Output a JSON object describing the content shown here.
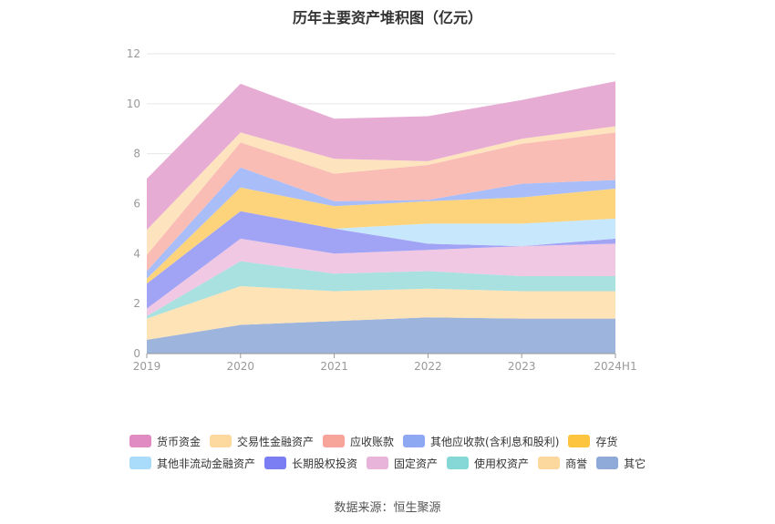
{
  "chart_data": {
    "type": "area",
    "stacked": true,
    "title": "历年主要资产堆积图（亿元）",
    "categories": [
      "2019",
      "2020",
      "2021",
      "2022",
      "2023",
      "2024H1"
    ],
    "ylim": [
      0,
      12
    ],
    "yticks": [
      0,
      2,
      4,
      6,
      8,
      10,
      12
    ],
    "grid": true,
    "legend_position": "bottom",
    "series": [
      {
        "name": "其它",
        "color": "#9db4dd",
        "values": [
          0.55,
          1.15,
          1.3,
          1.45,
          1.4,
          1.4
        ]
      },
      {
        "name": "商誉",
        "color": "#fde3b5",
        "values": [
          0.85,
          1.55,
          1.2,
          1.15,
          1.1,
          1.1
        ]
      },
      {
        "name": "使用权资产",
        "color": "#a8e1e0",
        "values": [
          0.1,
          1.0,
          0.7,
          0.7,
          0.6,
          0.6
        ]
      },
      {
        "name": "固定资产",
        "color": "#f0c8e4",
        "values": [
          0.3,
          0.9,
          0.8,
          0.85,
          1.2,
          1.3
        ]
      },
      {
        "name": "长期股权投资",
        "color": "#a1a3f5",
        "values": [
          1.0,
          1.1,
          1.0,
          0.25,
          0.0,
          0.2
        ]
      },
      {
        "name": "其他非流动金融资产",
        "color": "#c7e7fc",
        "values": [
          0.0,
          0.0,
          0.0,
          0.8,
          0.9,
          0.8
        ]
      },
      {
        "name": "存货",
        "color": "#fdd47c",
        "values": [
          0.2,
          0.95,
          0.9,
          0.9,
          1.05,
          1.2
        ]
      },
      {
        "name": "其他应收款(含利息和股利)",
        "color": "#a9bdf8",
        "values": [
          0.3,
          0.8,
          0.2,
          0.05,
          0.55,
          0.35
        ]
      },
      {
        "name": "应收账款",
        "color": "#f9bdb5",
        "values": [
          0.65,
          1.0,
          1.1,
          1.4,
          1.6,
          1.9
        ]
      },
      {
        "name": "交易性金融资产",
        "color": "#fde4bf",
        "values": [
          1.0,
          0.4,
          0.6,
          0.15,
          0.2,
          0.25
        ]
      },
      {
        "name": "货币资金",
        "color": "#e7acd3",
        "values": [
          2.05,
          1.95,
          1.6,
          1.8,
          1.55,
          1.8
        ]
      }
    ]
  },
  "legend": [
    {
      "label": "货币资金",
      "color": "#e08bc2"
    },
    {
      "label": "交易性金融资产",
      "color": "#fdd9a0"
    },
    {
      "label": "应收账款",
      "color": "#f7a59b"
    },
    {
      "label": "其他应收款(含利息和股利)",
      "color": "#8ea8f2"
    },
    {
      "label": "存货",
      "color": "#fcc43f"
    },
    {
      "label": "其他非流动金融资产",
      "color": "#a8dcfa"
    },
    {
      "label": "长期股权投资",
      "color": "#7b7ef2"
    },
    {
      "label": "固定资产",
      "color": "#e8b4d9"
    },
    {
      "label": "使用权资产",
      "color": "#86d8d6"
    },
    {
      "label": "商誉",
      "color": "#fdd89e"
    },
    {
      "label": "其它",
      "color": "#8faad9"
    }
  ],
  "source": "数据来源：恒生聚源"
}
